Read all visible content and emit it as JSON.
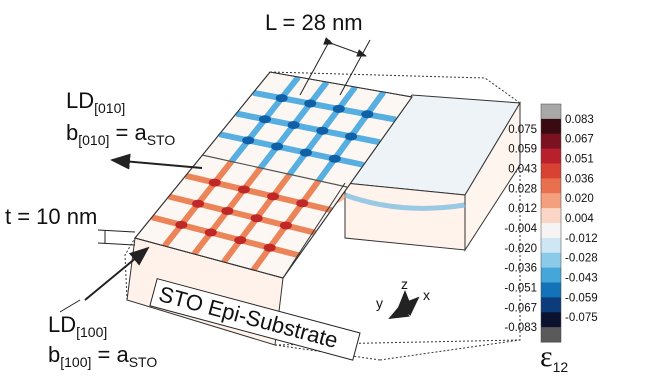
{
  "labels": {
    "length": "L = 28 nm",
    "thickness": "t = 10 nm",
    "substrate": "STO Epi-Substrate",
    "ld010": {
      "main": "LD",
      "sub": "[010]"
    },
    "b010": {
      "main": "b",
      "sub": "[010]",
      "eq": " = a",
      "sub2": "STO"
    },
    "ld100": {
      "main": "LD",
      "sub": "[100]"
    },
    "b100": {
      "main": "b",
      "sub": "[100]",
      "eq": " = a",
      "sub2": "STO"
    }
  },
  "axes": {
    "x": "x",
    "y": "y",
    "z": "z"
  },
  "colorbar": {
    "symbol": "ε",
    "subscript": "12",
    "left_labels": [
      "0.075",
      "0.059",
      "0.043",
      "0.028",
      "0.012",
      "-0.004",
      "-0.020",
      "-0.036",
      "-0.051",
      "-0.067",
      "-0.083"
    ],
    "right_labels": [
      "0.083",
      "0.067",
      "0.051",
      "0.036",
      "0.020",
      "0.004",
      "-0.012",
      "-0.028",
      "-0.043",
      "-0.059",
      "-0.075"
    ],
    "colors": [
      "#a8a8a8",
      "#3a0a12",
      "#7a1222",
      "#b8202c",
      "#d84232",
      "#e8704e",
      "#f4a07e",
      "#fbd6c6",
      "#f6f4f2",
      "#cfe6f4",
      "#8ccaea",
      "#45a6da",
      "#1472b8",
      "#0c3c7a",
      "#0a1230",
      "#5a5a5a"
    ]
  }
}
